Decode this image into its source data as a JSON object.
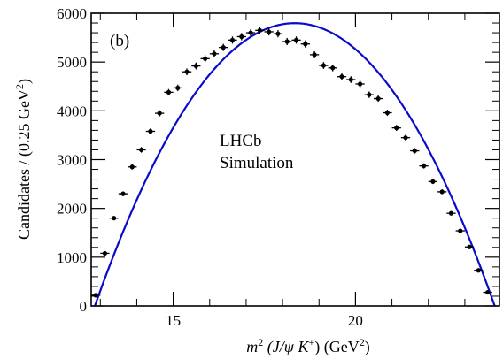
{
  "chart_data": {
    "type": "scatter",
    "panel_label": "(b)",
    "annotation_lines": [
      "LHCb",
      "Simulation"
    ],
    "xlabel": {
      "m": "m",
      "sup2": "2",
      "middle": " (J/ψ K",
      "plus": "+",
      "end": ") (GeV",
      "sup2b": "2",
      "close": ")"
    },
    "ylabel": {
      "main": "Candidates / (0.25 GeV",
      "sup2": "2",
      "close": ")"
    },
    "xlim": [
      12.75,
      23.95
    ],
    "ylim": [
      0,
      6000
    ],
    "x_ticks": [
      15,
      20
    ],
    "y_ticks": [
      0,
      1000,
      2000,
      3000,
      4000,
      5000,
      6000
    ],
    "x_tick_labels": [
      "15",
      "20"
    ],
    "y_tick_labels": [
      "0",
      "1000",
      "2000",
      "3000",
      "4000",
      "5000",
      "6000"
    ],
    "x_minor_step": 1,
    "y_minor_step": 200,
    "x_bin_halfwidth": 0.125,
    "points": [
      [
        12.875,
        220
      ],
      [
        13.125,
        1080
      ],
      [
        13.375,
        1800
      ],
      [
        13.625,
        2300
      ],
      [
        13.875,
        2850
      ],
      [
        14.125,
        3200
      ],
      [
        14.375,
        3580
      ],
      [
        14.625,
        3950
      ],
      [
        14.875,
        4380
      ],
      [
        15.125,
        4470
      ],
      [
        15.375,
        4800
      ],
      [
        15.625,
        4920
      ],
      [
        15.875,
        5070
      ],
      [
        16.125,
        5170
      ],
      [
        16.375,
        5300
      ],
      [
        16.625,
        5450
      ],
      [
        16.875,
        5520
      ],
      [
        17.125,
        5600
      ],
      [
        17.375,
        5650
      ],
      [
        17.625,
        5620
      ],
      [
        17.875,
        5580
      ],
      [
        18.125,
        5420
      ],
      [
        18.375,
        5450
      ],
      [
        18.625,
        5370
      ],
      [
        18.875,
        5150
      ],
      [
        19.125,
        4930
      ],
      [
        19.375,
        4880
      ],
      [
        19.625,
        4700
      ],
      [
        19.875,
        4640
      ],
      [
        20.125,
        4550
      ],
      [
        20.375,
        4330
      ],
      [
        20.625,
        4250
      ],
      [
        20.875,
        3960
      ],
      [
        21.125,
        3650
      ],
      [
        21.375,
        3450
      ],
      [
        21.625,
        3180
      ],
      [
        21.875,
        2870
      ],
      [
        22.125,
        2550
      ],
      [
        22.375,
        2340
      ],
      [
        22.625,
        1900
      ],
      [
        22.875,
        1540
      ],
      [
        23.125,
        1210
      ],
      [
        23.375,
        730
      ],
      [
        23.625,
        280
      ]
    ],
    "fit": {
      "model": "parabola",
      "x_start": 12.85,
      "x_end": 23.82,
      "peak_x": 17.35,
      "peak_y": 5610,
      "color": "#0a0acc"
    },
    "marker_color": "#000000"
  }
}
